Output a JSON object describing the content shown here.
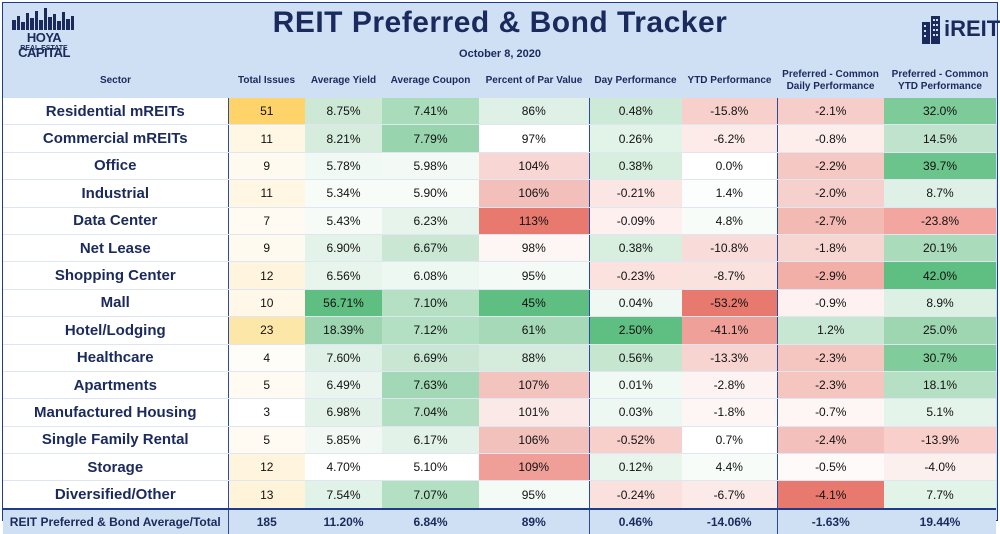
{
  "header": {
    "title": "REIT Preferred & Bond Tracker",
    "date": "October 8, 2020",
    "logo_left": {
      "line1": "HOYA CAPITAL",
      "line2": "REAL ESTATE"
    },
    "logo_right": "iREIT"
  },
  "columns": [
    "Sector",
    "Total Issues",
    "Average Yield",
    "Average Coupon",
    "Percent of Par Value",
    "Day Performance",
    "YTD Performance",
    "Preferred - Common Daily Performance",
    "Preferred - Common YTD Performance"
  ],
  "rows": [
    {
      "sector": "Residential mREITs",
      "issues": "51",
      "yield": "8.75%",
      "coupon": "7.41%",
      "par": "86%",
      "day": "0.48%",
      "ytd": "-15.8%",
      "pc_daily": "-2.1%",
      "pc_ytd": "32.0%"
    },
    {
      "sector": "Commercial mREITs",
      "issues": "11",
      "yield": "8.21%",
      "coupon": "7.79%",
      "par": "97%",
      "day": "0.26%",
      "ytd": "-6.2%",
      "pc_daily": "-0.8%",
      "pc_ytd": "14.5%"
    },
    {
      "sector": "Office",
      "issues": "9",
      "yield": "5.78%",
      "coupon": "5.98%",
      "par": "104%",
      "day": "0.38%",
      "ytd": "0.0%",
      "pc_daily": "-2.2%",
      "pc_ytd": "39.7%"
    },
    {
      "sector": "Industrial",
      "issues": "11",
      "yield": "5.34%",
      "coupon": "5.90%",
      "par": "106%",
      "day": "-0.21%",
      "ytd": "1.4%",
      "pc_daily": "-2.0%",
      "pc_ytd": "8.7%"
    },
    {
      "sector": "Data Center",
      "issues": "7",
      "yield": "5.43%",
      "coupon": "6.23%",
      "par": "113%",
      "day": "-0.09%",
      "ytd": "4.8%",
      "pc_daily": "-2.7%",
      "pc_ytd": "-23.8%"
    },
    {
      "sector": "Net Lease",
      "issues": "9",
      "yield": "6.90%",
      "coupon": "6.67%",
      "par": "98%",
      "day": "0.38%",
      "ytd": "-10.8%",
      "pc_daily": "-1.8%",
      "pc_ytd": "20.1%"
    },
    {
      "sector": "Shopping Center",
      "issues": "12",
      "yield": "6.56%",
      "coupon": "6.08%",
      "par": "95%",
      "day": "-0.23%",
      "ytd": "-8.7%",
      "pc_daily": "-2.9%",
      "pc_ytd": "42.0%"
    },
    {
      "sector": "Mall",
      "issues": "10",
      "yield": "56.71%",
      "coupon": "7.10%",
      "par": "45%",
      "day": "0.04%",
      "ytd": "-53.2%",
      "pc_daily": "-0.9%",
      "pc_ytd": "8.9%"
    },
    {
      "sector": "Hotel/Lodging",
      "issues": "23",
      "yield": "18.39%",
      "coupon": "7.12%",
      "par": "61%",
      "day": "2.50%",
      "ytd": "-41.1%",
      "pc_daily": "1.2%",
      "pc_ytd": "25.0%"
    },
    {
      "sector": "Healthcare",
      "issues": "4",
      "yield": "7.60%",
      "coupon": "6.69%",
      "par": "88%",
      "day": "0.56%",
      "ytd": "-13.3%",
      "pc_daily": "-2.3%",
      "pc_ytd": "30.7%"
    },
    {
      "sector": "Apartments",
      "issues": "5",
      "yield": "6.49%",
      "coupon": "7.63%",
      "par": "107%",
      "day": "0.01%",
      "ytd": "-2.8%",
      "pc_daily": "-2.3%",
      "pc_ytd": "18.1%"
    },
    {
      "sector": "Manufactured Housing",
      "issues": "3",
      "yield": "6.98%",
      "coupon": "7.04%",
      "par": "101%",
      "day": "0.03%",
      "ytd": "-1.8%",
      "pc_daily": "-0.7%",
      "pc_ytd": "5.1%"
    },
    {
      "sector": "Single Family Rental",
      "issues": "5",
      "yield": "5.85%",
      "coupon": "6.17%",
      "par": "106%",
      "day": "-0.52%",
      "ytd": "0.7%",
      "pc_daily": "-2.4%",
      "pc_ytd": "-13.9%"
    },
    {
      "sector": "Storage",
      "issues": "12",
      "yield": "4.70%",
      "coupon": "5.10%",
      "par": "109%",
      "day": "0.12%",
      "ytd": "4.4%",
      "pc_daily": "-0.5%",
      "pc_ytd": "-4.0%"
    },
    {
      "sector": "Diversified/Other",
      "issues": "13",
      "yield": "7.54%",
      "coupon": "7.07%",
      "par": "95%",
      "day": "-0.24%",
      "ytd": "-6.7%",
      "pc_daily": "-4.1%",
      "pc_ytd": "7.7%"
    }
  ],
  "total": {
    "sector": "REIT Preferred & Bond Average/Total",
    "issues": "185",
    "yield": "11.20%",
    "coupon": "6.84%",
    "par": "89%",
    "day": "0.46%",
    "ytd": "-14.06%",
    "pc_daily": "-1.63%",
    "pc_ytd": "19.44%"
  },
  "colors": {
    "issues": [
      "#fdd36a",
      "#fff7e4",
      "#fffaf0",
      "#fff7e4",
      "#fffbf3",
      "#fffaf0",
      "#fff5de",
      "#fff8e9",
      "#fde7a8",
      "#fffdf8",
      "#fffbf3",
      "#ffffff",
      "#fffbf3",
      "#fff5de",
      "#fff4da"
    ],
    "yield": [
      "#cde9d6",
      "#d6edde",
      "#f1f9f4",
      "#f8fcf9",
      "#f6fbf8",
      "#e4f3ea",
      "#e8f5ed",
      "#5fbf82",
      "#9cd5b0",
      "#dff1e6",
      "#e9f5ee",
      "#e3f2e9",
      "#f2f9f5",
      "#ffffff",
      "#e1f2e8"
    ],
    "coupon": [
      "#a9dcbb",
      "#98d4ad",
      "#f3faf6",
      "#f7fcf9",
      "#e6f4eb",
      "#c9e7d3",
      "#eef8f2",
      "#b5e0c4",
      "#b3dfc3",
      "#c8e6d2",
      "#a2d8b5",
      "#b2dfc2",
      "#e3f2e9",
      "#ffffff",
      "#b3dfc3"
    ],
    "par": [
      "#dff1e6",
      "#ffffff",
      "#f8d6d3",
      "#f3bfba",
      "#e8796e",
      "#fdf6f5",
      "#f4faf6",
      "#5fbf82",
      "#a6d9b8",
      "#d5ecdd",
      "#f3c3be",
      "#fae9e7",
      "#f3c1bc",
      "#ef9f98",
      "#f4faf6"
    ],
    "day": [
      "#cde9d7",
      "#e2f3e8",
      "#d8eedf",
      "#fce6e4",
      "#fdf0ef",
      "#d8eedf",
      "#fbe2df",
      "#eff8f2",
      "#5fbf82",
      "#c6e6d0",
      "#f1f9f4",
      "#eef8f2",
      "#f7cfcb",
      "#e7f5ec",
      "#fbe1de"
    ],
    "ytd": [
      "#f7d0cc",
      "#fcebe9",
      "#ffffff",
      "#fcfefd",
      "#f7fcf9",
      "#f9dcd9",
      "#fae2df",
      "#e8796e",
      "#efa098",
      "#f8d4d0",
      "#fdf3f2",
      "#fdf6f5",
      "#fefffe",
      "#f8fcf9",
      "#fceae8"
    ],
    "pc_daily": [
      "#f6cdc9",
      "#fdeeec",
      "#f5c8c3",
      "#f6d0cc",
      "#f3b9b3",
      "#f7d6d2",
      "#f1afa8",
      "#fdf2f1",
      "#c8e7d2",
      "#f5c5c0",
      "#f5c5c0",
      "#fef6f5",
      "#f4c0bb",
      "#fefaf9",
      "#e8796e"
    ],
    "pc_ytd": [
      "#7ccb98",
      "#bfe3cc",
      "#6bc48b",
      "#dff1e6",
      "#f3a69f",
      "#aadcbb",
      "#5fbf82",
      "#dcf0e3",
      "#9ed6b1",
      "#80cd9b",
      "#b5e0c3",
      "#e5f4eb",
      "#f8cfca",
      "#fcf0ef",
      "#e2f3e8"
    ]
  }
}
